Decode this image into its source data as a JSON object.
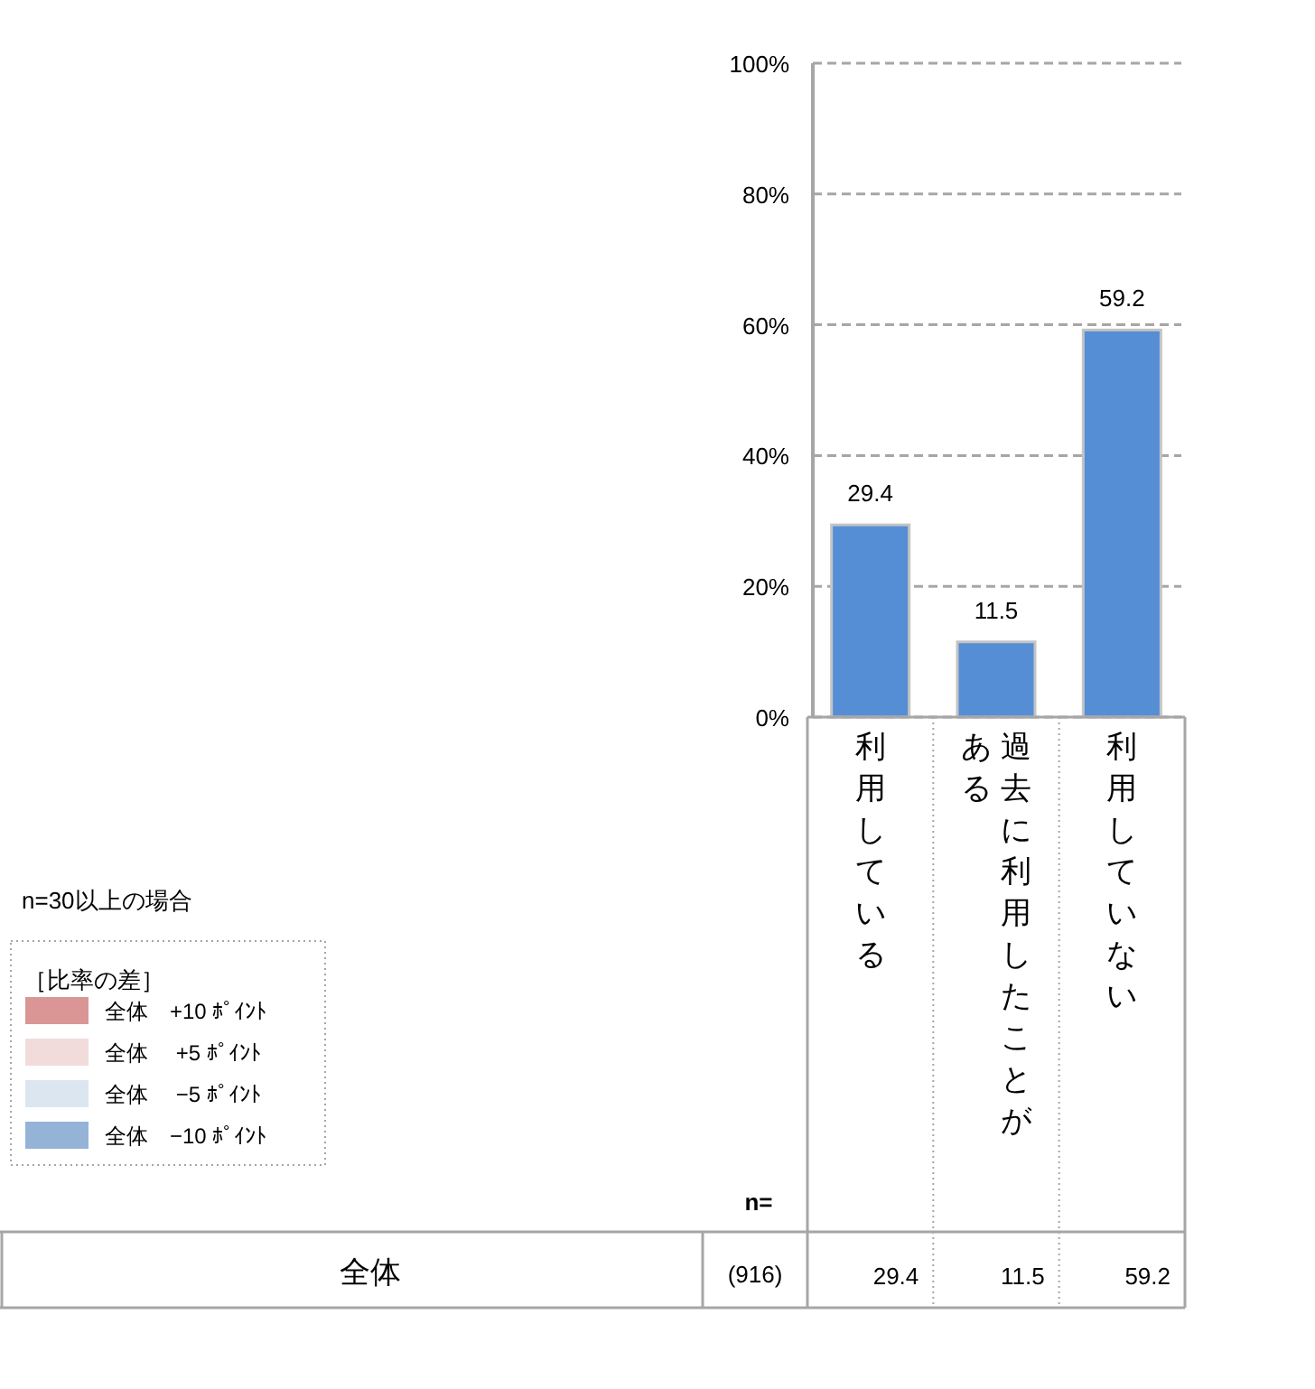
{
  "chart_data": {
    "type": "bar",
    "categories": [
      "利用している",
      "過去に利用したことがある",
      "利用していない"
    ],
    "values": [
      29.4,
      11.5,
      59.2
    ],
    "color": "#558ed5",
    "ylim": [
      0,
      100
    ],
    "yticks": [
      {
        "value": 0,
        "label": "0%"
      },
      {
        "value": 20,
        "label": "20%"
      },
      {
        "value": 40,
        "label": "40%"
      },
      {
        "value": 60,
        "label": "60%"
      },
      {
        "value": 80,
        "label": "80%"
      },
      {
        "value": 100,
        "label": "100%"
      }
    ],
    "grid": "y",
    "data_labels": true,
    "annotations": [
      "n=30以上の場合",
      "［比率の差］",
      "全体　+10 ﾎﾟｲﾝﾄ",
      "全体　 +5 ﾎﾟｲﾝﾄ",
      "全体　 −5 ﾎﾟｲﾝﾄ",
      "全体　−10 ﾎﾟｲﾝﾄ",
      "n=",
      "全体",
      "(916)",
      "29.4",
      "11.5",
      "59.2"
    ]
  }
}
